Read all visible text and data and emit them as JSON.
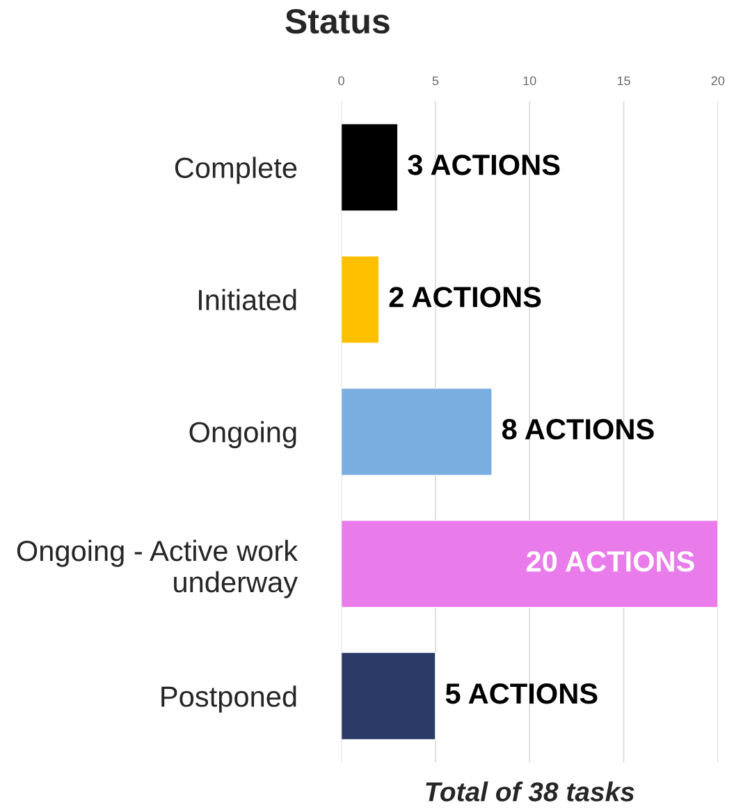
{
  "chart_data": {
    "type": "bar",
    "orientation": "horizontal",
    "title": "Status",
    "xlabel": "Total of 38 tasks",
    "categories": [
      "Complete",
      "Initiated",
      "Ongoing",
      "Ongoing - Active work\nunderway",
      "Postponed"
    ],
    "values": [
      3,
      2,
      8,
      20,
      5
    ],
    "colors": [
      "#000000",
      "#ffc000",
      "#7aaee0",
      "#ea7bea",
      "#2b3a67"
    ],
    "value_labels": [
      "3 ACTIONS",
      "2 ACTIONS",
      "8 ACTIONS",
      "20 ACTIONS",
      "5 ACTIONS"
    ],
    "xlim": [
      0,
      20
    ],
    "xticks": [
      0,
      5,
      10,
      15,
      20
    ],
    "grid": "x",
    "legend": false
  }
}
